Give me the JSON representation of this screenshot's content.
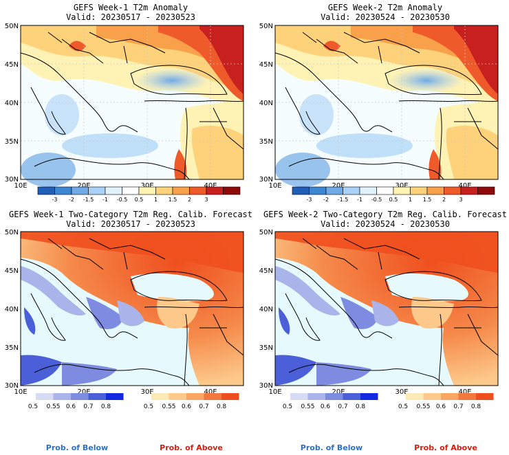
{
  "panels": [
    {
      "title": "GEFS Week-1 T2m Anomaly",
      "valid": "Valid: 20230517 - 20230523",
      "kind": "anomaly",
      "lat_ticks": [
        "50N",
        "45N",
        "40N",
        "35N",
        "30N"
      ],
      "lon_ticks": [
        "10E",
        "20E",
        "30E",
        "40E"
      ]
    },
    {
      "title": "GEFS Week-2 T2m Anomaly",
      "valid": "Valid: 20230524 - 20230530",
      "kind": "anomaly",
      "lat_ticks": [
        "50N",
        "45N",
        "40N",
        "35N",
        "30N"
      ],
      "lon_ticks": [
        "10E",
        "20E",
        "30E",
        "40E"
      ]
    },
    {
      "title": "GEFS Week-1 Two-Category T2m Reg. Calib. Forecast",
      "valid": "Valid: 20230517 - 20230523",
      "kind": "probability",
      "lat_ticks": [
        "50N",
        "45N",
        "40N",
        "35N",
        "30N"
      ],
      "lon_ticks": [
        "10E",
        "20E",
        "30E",
        "40E"
      ]
    },
    {
      "title": "GEFS Week-2 Two-Category T2m Reg. Calib. Forecast",
      "valid": "Valid: 20230524 - 20230530",
      "kind": "probability",
      "lat_ticks": [
        "50N",
        "45N",
        "40N",
        "35N",
        "30N"
      ],
      "lon_ticks": [
        "10E",
        "20E",
        "30E",
        "40E"
      ]
    }
  ],
  "anomaly_scale": {
    "labels": [
      "-3",
      "-2",
      "-1.5",
      "-1",
      "-0.5",
      "0.5",
      "1",
      "1.5",
      "2",
      "3"
    ],
    "colors": [
      "#1f5fb8",
      "#3d86d4",
      "#6fa9e6",
      "#a9d1f5",
      "#e2f2fc",
      "#ffffff",
      "#fff2b5",
      "#fdd27a",
      "#f9a14a",
      "#ee5a2a",
      "#c8201e",
      "#8e0a0a"
    ]
  },
  "prob_scale": {
    "labels": [
      "0.5",
      "0.55",
      "0.6",
      "0.7",
      "0.8"
    ],
    "below_colors": [
      "#d7dbf3",
      "#aab4ea",
      "#7d8ce0",
      "#4b5fd8",
      "#1428e0"
    ],
    "above_colors": [
      "#fde9b6",
      "#fcc98a",
      "#f9a662",
      "#f2783e",
      "#ef4f1e"
    ]
  },
  "legend_titles": {
    "below": "Prob. of Below",
    "above": "Prob. of Above",
    "below_color": "#2a70c8",
    "above_color": "#d81c10"
  },
  "colors": {
    "sea": "#e6fafd",
    "border": "#000000",
    "grid": "#c8c8c8"
  }
}
